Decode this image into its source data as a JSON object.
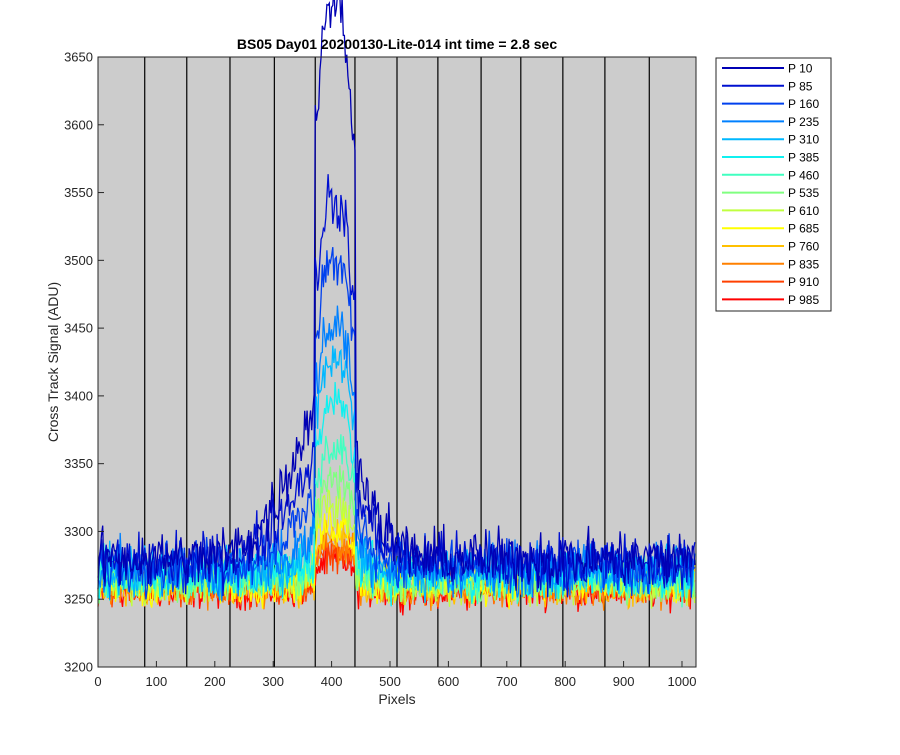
{
  "chart_data": {
    "type": "line",
    "title": "BS05 Day01 20200130-Lite-014 int time = 2.8 sec",
    "xlabel": "Pixels",
    "ylabel": "Cross Track Signal (ADU)",
    "xlim": [
      0,
      1024
    ],
    "ylim": [
      3200,
      3650
    ],
    "xticks": [
      0,
      100,
      200,
      300,
      400,
      500,
      600,
      700,
      800,
      900,
      1000
    ],
    "yticks": [
      3200,
      3250,
      3300,
      3350,
      3400,
      3450,
      3500,
      3550,
      3600,
      3650
    ],
    "vertical_lines": [
      80,
      152,
      226,
      302,
      372,
      440,
      512,
      582,
      656,
      724,
      796,
      868,
      944
    ],
    "background": "#cccccc",
    "grid": false,
    "legend_position": "right-outside-top",
    "peak_range": [
      372,
      440
    ],
    "series": [
      {
        "name": "P 10",
        "color": "#0000b4",
        "base": 3280,
        "peak": 3610,
        "shoulder": 85
      },
      {
        "name": "P 85",
        "color": "#0010d0",
        "base": 3277,
        "peak": 3485,
        "shoulder": 60
      },
      {
        "name": "P 160",
        "color": "#0040ee",
        "base": 3275,
        "peak": 3470,
        "shoulder": 30
      },
      {
        "name": "P 235",
        "color": "#0080ff",
        "base": 3272,
        "peak": 3440,
        "shoulder": 12
      },
      {
        "name": "P 310",
        "color": "#00b8ff",
        "base": 3270,
        "peak": 3420,
        "shoulder": 6
      },
      {
        "name": "P 385",
        "color": "#10f0f0",
        "base": 3268,
        "peak": 3390,
        "shoulder": 3
      },
      {
        "name": "P 460",
        "color": "#40ffc0",
        "base": 3266,
        "peak": 3360,
        "shoulder": 2
      },
      {
        "name": "P 535",
        "color": "#80ff80",
        "base": 3264,
        "peak": 3335,
        "shoulder": 1
      },
      {
        "name": "P 610",
        "color": "#c0ff40",
        "base": 3262,
        "peak": 3320,
        "shoulder": 1
      },
      {
        "name": "P 685",
        "color": "#ffff00",
        "base": 3261,
        "peak": 3305,
        "shoulder": 0
      },
      {
        "name": "P 760",
        "color": "#ffc000",
        "base": 3260,
        "peak": 3298,
        "shoulder": 0
      },
      {
        "name": "P 835",
        "color": "#ff8000",
        "base": 3259,
        "peak": 3290,
        "shoulder": 0
      },
      {
        "name": "P 910",
        "color": "#ff4000",
        "base": 3258,
        "peak": 3285,
        "shoulder": 0
      },
      {
        "name": "P 985",
        "color": "#ff0000",
        "base": 3256,
        "peak": 3278,
        "shoulder": 0
      }
    ]
  }
}
